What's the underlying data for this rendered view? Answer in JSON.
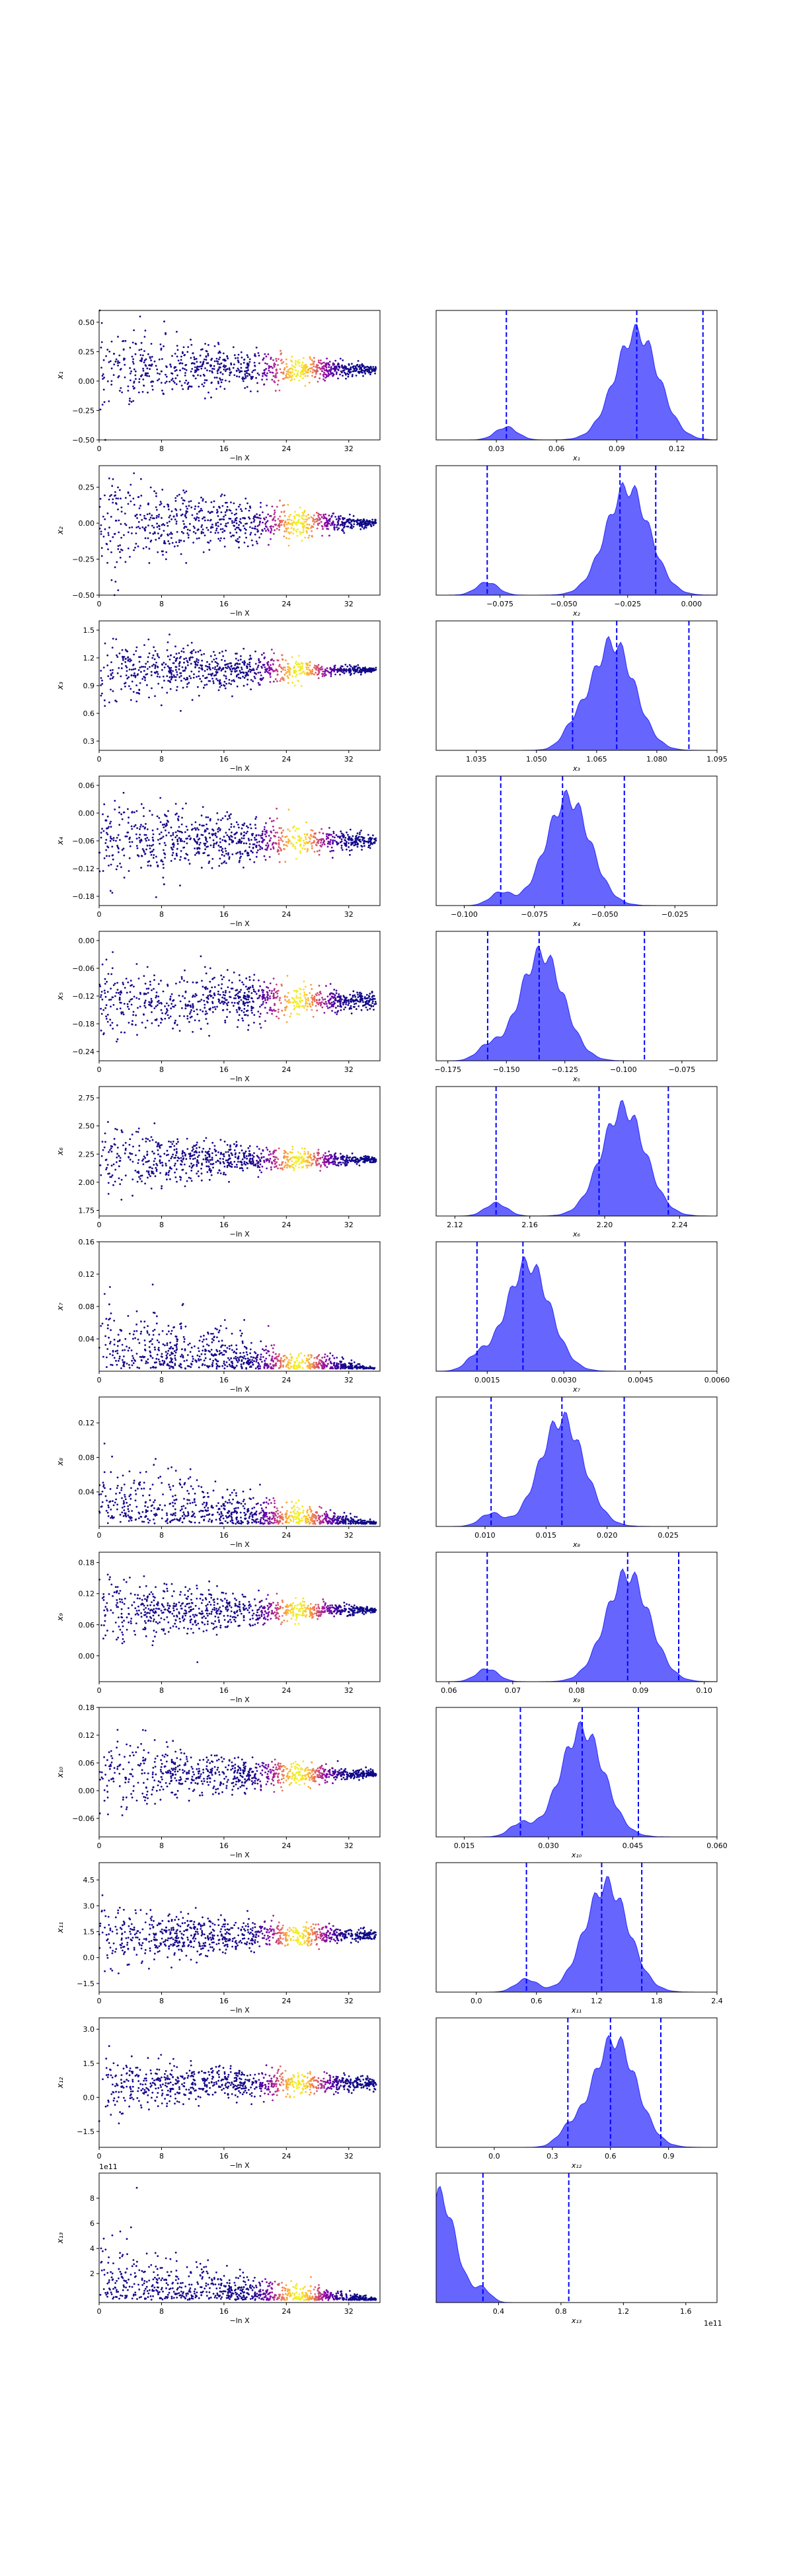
{
  "figure": {
    "rows": 13,
    "trace_xlabel": "−ln X",
    "trace_xticks": [
      0,
      8,
      16,
      24,
      32
    ],
    "trace_xlim": [
      0,
      36
    ],
    "colormap": "plasma",
    "hist_color": "#0000ff",
    "hist_alpha": 0.6,
    "quantile_line_style": "dashed"
  },
  "chart_data": [
    {
      "type": "scatter",
      "param": "x_1",
      "ylabel": "x₁",
      "yticks": [
        "−0.50",
        "−0.25",
        "0.00",
        "0.25",
        "0.50"
      ],
      "ylim": [
        -0.5,
        0.6
      ],
      "center": 0.1,
      "spread_start": 0.35,
      "spread_end": 0.03,
      "hist": {
        "type": "area",
        "xlabel": "x₁",
        "xticks": [
          "0.03",
          "0.06",
          "0.09",
          "0.12"
        ],
        "xlim": [
          0.0,
          0.14
        ],
        "quantiles": [
          0.035,
          0.1,
          0.133
        ],
        "peak": 0.1
      }
    },
    {
      "type": "scatter",
      "param": "x_2",
      "ylabel": "x₂",
      "yticks": [
        "−0.50",
        "−0.25",
        "0.00",
        "0.25"
      ],
      "ylim": [
        -0.5,
        0.4
      ],
      "center": 0.0,
      "spread_start": 0.35,
      "spread_end": 0.02,
      "hist": {
        "type": "area",
        "xlabel": "x₂",
        "xticks": [
          "−0.075",
          "−0.050",
          "−0.025",
          "0.000"
        ],
        "xlim": [
          -0.1,
          0.01
        ],
        "quantiles": [
          -0.08,
          -0.028,
          -0.014
        ],
        "peak": -0.025
      }
    },
    {
      "type": "scatter",
      "param": "x_3",
      "ylabel": "x₃",
      "yticks": [
        "0.3",
        "0.6",
        "0.9",
        "1.2",
        "1.5"
      ],
      "ylim": [
        0.2,
        1.6
      ],
      "center": 1.07,
      "spread_start": 0.4,
      "spread_end": 0.02,
      "hist": {
        "type": "area",
        "xlabel": "x₃",
        "xticks": [
          "1.035",
          "1.050",
          "1.065",
          "1.080",
          "1.095"
        ],
        "xlim": [
          1.025,
          1.095
        ],
        "quantiles": [
          1.059,
          1.07,
          1.088
        ],
        "peak": 1.069
      }
    },
    {
      "type": "scatter",
      "param": "x_4",
      "ylabel": "x₄",
      "yticks": [
        "−0.18",
        "−0.12",
        "−0.06",
        "0.00",
        "0.06"
      ],
      "ylim": [
        -0.2,
        0.08
      ],
      "center": -0.06,
      "spread_start": 0.1,
      "spread_end": 0.012,
      "hist": {
        "type": "area",
        "xlabel": "x₄",
        "xticks": [
          "−0.100",
          "−0.075",
          "−0.050",
          "−0.025"
        ],
        "xlim": [
          -0.11,
          -0.01
        ],
        "quantiles": [
          -0.087,
          -0.065,
          -0.043
        ],
        "peak": -0.063
      }
    },
    {
      "type": "scatter",
      "param": "x_5",
      "ylabel": "x₅",
      "yticks": [
        "−0.24",
        "−0.18",
        "−0.12",
        "−0.06",
        "0.00"
      ],
      "ylim": [
        -0.26,
        0.02
      ],
      "center": -0.13,
      "spread_start": 0.09,
      "spread_end": 0.015,
      "hist": {
        "type": "area",
        "xlabel": "x₅",
        "xticks": [
          "−0.175",
          "−0.150",
          "−0.125",
          "−0.100",
          "−0.075"
        ],
        "xlim": [
          -0.18,
          -0.06
        ],
        "quantiles": [
          -0.158,
          -0.136,
          -0.091
        ],
        "peak": -0.135
      }
    },
    {
      "type": "scatter",
      "param": "x_6",
      "ylabel": "x₆",
      "yticks": [
        "1.75",
        "2.00",
        "2.25",
        "2.50",
        "2.75"
      ],
      "ylim": [
        1.7,
        2.85
      ],
      "center": 2.2,
      "spread_start": 0.3,
      "spread_end": 0.02,
      "hist": {
        "type": "area",
        "xlabel": "x₆",
        "xticks": [
          "2.12",
          "2.16",
          "2.20",
          "2.24"
        ],
        "xlim": [
          2.11,
          2.26
        ],
        "quantiles": [
          2.142,
          2.197,
          2.234
        ],
        "peak": 2.21
      }
    },
    {
      "type": "scatter",
      "param": "x_7",
      "ylabel": "x₇",
      "yticks": [
        "0.04",
        "0.08",
        "0.12",
        "0.16"
      ],
      "ylim": [
        0.0,
        0.16
      ],
      "center": 0.003,
      "spread_start": 0.07,
      "spread_end": 0.001,
      "hist": {
        "type": "area",
        "xlabel": "x₇",
        "xticks": [
          "0.0015",
          "0.0030",
          "0.0045",
          "0.0060"
        ],
        "xlim": [
          0.0005,
          0.006
        ],
        "quantiles": [
          0.0013,
          0.0022,
          0.0042
        ],
        "peak": 0.0023
      }
    },
    {
      "type": "scatter",
      "param": "x_8",
      "ylabel": "x₈",
      "yticks": [
        "0.04",
        "0.08",
        "0.12"
      ],
      "ylim": [
        0.0,
        0.15
      ],
      "center": 0.016,
      "spread_start": 0.06,
      "spread_end": 0.002,
      "hist": {
        "type": "area",
        "xlabel": "x₈",
        "xticks": [
          "0.010",
          "0.015",
          "0.020",
          "0.025"
        ],
        "xlim": [
          0.006,
          0.029
        ],
        "quantiles": [
          0.0105,
          0.0163,
          0.0214
        ],
        "peak": 0.0163
      }
    },
    {
      "type": "scatter",
      "param": "x_9",
      "ylabel": "x₉",
      "yticks": [
        "0.00",
        "0.06",
        "0.12",
        "0.18"
      ],
      "ylim": [
        -0.05,
        0.2
      ],
      "center": 0.088,
      "spread_start": 0.07,
      "spread_end": 0.004,
      "hist": {
        "type": "area",
        "xlabel": "x₉",
        "xticks": [
          "0.06",
          "0.07",
          "0.08",
          "0.09",
          "0.10"
        ],
        "xlim": [
          0.058,
          0.102
        ],
        "quantiles": [
          0.066,
          0.088,
          0.096
        ],
        "peak": 0.088
      }
    },
    {
      "type": "scatter",
      "param": "x_10",
      "ylabel": "x₁₀",
      "yticks": [
        "−0.06",
        "0.00",
        "0.06",
        "0.12",
        "0.18"
      ],
      "ylim": [
        -0.1,
        0.18
      ],
      "center": 0.036,
      "spread_start": 0.08,
      "spread_end": 0.006,
      "hist": {
        "type": "area",
        "xlabel": "x₁₀",
        "xticks": [
          "0.015",
          "0.030",
          "0.045",
          "0.060"
        ],
        "xlim": [
          0.01,
          0.06
        ],
        "quantiles": [
          0.025,
          0.036,
          0.046
        ],
        "peak": 0.036
      }
    },
    {
      "type": "scatter",
      "param": "x_11",
      "ylabel": "x₁₁",
      "yticks": [
        "−1.5",
        "0.0",
        "1.5",
        "3.0",
        "4.5"
      ],
      "ylim": [
        -2.0,
        5.5
      ],
      "center": 1.3,
      "spread_start": 1.8,
      "spread_end": 0.25,
      "hist": {
        "type": "area",
        "xlabel": "x₁₁",
        "xticks": [
          "0.0",
          "0.6",
          "1.2",
          "1.8",
          "2.4"
        ],
        "xlim": [
          -0.4,
          2.4
        ],
        "quantiles": [
          0.5,
          1.25,
          1.65
        ],
        "peak": 1.3
      }
    },
    {
      "type": "scatter",
      "param": "x_12",
      "ylabel": "x₁₂",
      "yticks": [
        "−1.5",
        "0.0",
        "1.5",
        "3.0"
      ],
      "ylim": [
        -2.2,
        3.5
      ],
      "center": 0.6,
      "spread_start": 1.2,
      "spread_end": 0.25,
      "hist": {
        "type": "area",
        "xlabel": "x₁₂",
        "xticks": [
          "0.0",
          "0.3",
          "0.6",
          "0.9"
        ],
        "xlim": [
          -0.3,
          1.15
        ],
        "quantiles": [
          0.38,
          0.6,
          0.86
        ],
        "peak": 0.62
      }
    },
    {
      "type": "scatter",
      "param": "x_13",
      "ylabel": "x₁₃",
      "offset_text": "1e11",
      "yticks": [
        "2",
        "4",
        "6",
        "8"
      ],
      "ylim": [
        -0.3,
        10.0
      ],
      "center": 0.2,
      "spread_start": 3.5,
      "spread_end": 0.1,
      "hist": {
        "type": "area",
        "xlabel": "x₁₃",
        "offset_text": "1e11",
        "xticks": [
          "0.4",
          "0.8",
          "1.2",
          "1.6"
        ],
        "xlim": [
          0.0,
          1.8
        ],
        "quantiles": [
          0.3,
          0.85
        ],
        "peak": 0.02
      }
    }
  ]
}
